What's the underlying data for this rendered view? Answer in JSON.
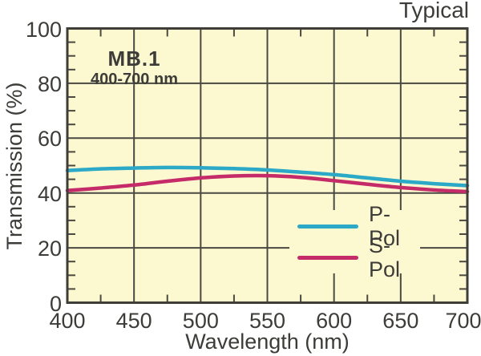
{
  "figure": {
    "corner_label": "Typical"
  },
  "colors": {
    "page_bg": "#ffffff",
    "plot_bg": "#fcf8d0",
    "grid": "#4a4942",
    "frame": "#3e3d37",
    "text": "#3d3c38",
    "p_pol": "#2ba9c7",
    "s_pol": "#c52b68"
  },
  "chart_data": {
    "type": "line",
    "annotation": {
      "title": "MB.1",
      "subtitle": "400-700 nm"
    },
    "corner_label": "Typical",
    "xlabel": "Wavelength (nm)",
    "ylabel": "Transmission (%)",
    "xlim": [
      400,
      700
    ],
    "ylim": [
      0,
      100
    ],
    "x_major_ticks": [
      400,
      450,
      500,
      550,
      600,
      650,
      700
    ],
    "x_minor_step": 25,
    "y_major_ticks": [
      0,
      20,
      40,
      60,
      80,
      100
    ],
    "y_minor_step": 5,
    "grid": "major gridlines inside plot, minor ticks on edges",
    "legend_position": "inside lower right",
    "x": [
      400,
      425,
      450,
      475,
      500,
      525,
      550,
      575,
      600,
      625,
      650,
      675,
      700
    ],
    "series": [
      {
        "name": "P-Pol",
        "color": "#2ba9c7",
        "values": [
          48.2,
          48.8,
          49.1,
          49.3,
          49.2,
          48.9,
          48.4,
          47.6,
          46.7,
          45.5,
          44.3,
          43.4,
          42.7
        ]
      },
      {
        "name": "S-Pol",
        "color": "#c52b68",
        "values": [
          40.9,
          41.8,
          42.9,
          44.3,
          45.5,
          46.2,
          46.3,
          45.7,
          44.5,
          43.2,
          42.0,
          41.1,
          40.5
        ]
      }
    ]
  }
}
